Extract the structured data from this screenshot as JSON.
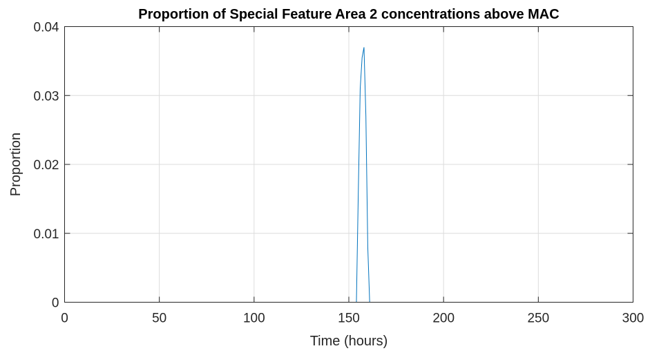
{
  "chart_data": {
    "type": "line",
    "title": "Proportion of Special Feature Area 2 concentrations above MAC",
    "xlabel": "Time (hours)",
    "ylabel": "Proportion",
    "xlim": [
      0,
      300
    ],
    "ylim": [
      0,
      0.04
    ],
    "xticks": [
      0,
      50,
      100,
      150,
      200,
      250,
      300
    ],
    "xtick_labels": [
      "0",
      "50",
      "100",
      "150",
      "200",
      "250",
      "300"
    ],
    "yticks": [
      0,
      0.01,
      0.02,
      0.03,
      0.04
    ],
    "ytick_labels": [
      "0",
      "0.01",
      "0.02",
      "0.03",
      "0.04"
    ],
    "grid": true,
    "legend": "none",
    "series": [
      {
        "color": "#0072BD",
        "x": [
          0,
          153,
          154,
          155,
          156,
          157,
          158,
          159,
          160,
          161,
          162,
          300
        ],
        "y": [
          0,
          0,
          0,
          0.016,
          0.031,
          0.0355,
          0.037,
          0.027,
          0.008,
          0,
          0,
          0
        ]
      }
    ]
  }
}
